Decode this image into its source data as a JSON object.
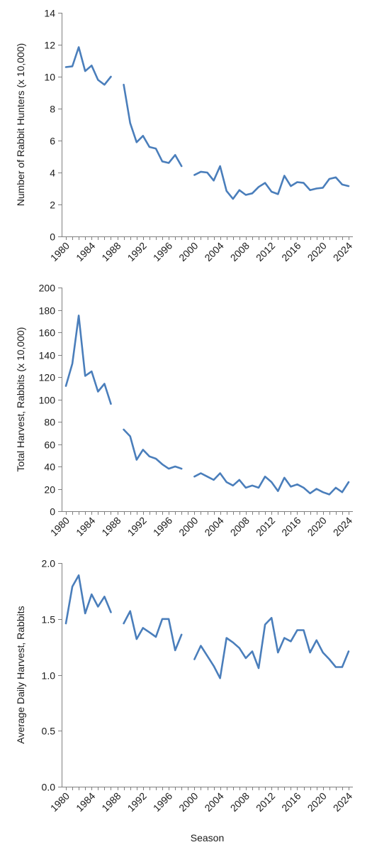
{
  "colors": {
    "series": "#4a7ebb",
    "axis": "#7f7f7f",
    "text": "#1a1a1a"
  },
  "chart_data": [
    {
      "type": "line",
      "title": "",
      "xlabel": "",
      "ylabel": "Number of Rabbit Hunters (x 10,000)",
      "xlim": [
        1980,
        2024
      ],
      "ylim": [
        0,
        14
      ],
      "yticks": [
        0,
        2,
        4,
        6,
        8,
        10,
        12,
        14
      ],
      "ytick_labels": [
        "0",
        "2",
        "4",
        "6",
        "8",
        "10",
        "12",
        "14"
      ],
      "xticks": [
        1980,
        1984,
        1988,
        1992,
        1996,
        2000,
        2004,
        2008,
        2012,
        2016,
        2020,
        2024
      ],
      "xtick_labels": [
        "1980",
        "1984",
        "1988",
        "1992",
        "1996",
        "2000",
        "2004",
        "2008",
        "2012",
        "2016",
        "2020",
        "2024"
      ],
      "grid": false,
      "segments": [
        {
          "x": [
            1980,
            1981,
            1982,
            1983,
            1984,
            1985,
            1986,
            1987
          ],
          "y": [
            10.6,
            10.65,
            11.85,
            10.35,
            10.7,
            9.8,
            9.5,
            10.0
          ]
        },
        {
          "x": [
            1989,
            1990,
            1991,
            1992,
            1993,
            1994,
            1995,
            1996,
            1997,
            1998
          ],
          "y": [
            9.5,
            7.1,
            5.9,
            6.3,
            5.6,
            5.5,
            4.7,
            4.6,
            5.1,
            4.4
          ]
        },
        {
          "x": [
            2000,
            2001,
            2002,
            2003,
            2004,
            2005,
            2006,
            2007,
            2008,
            2009,
            2010,
            2011,
            2012,
            2013,
            2014,
            2015,
            2016,
            2017,
            2018,
            2019,
            2020,
            2021,
            2022,
            2023,
            2024
          ],
          "y": [
            3.85,
            4.05,
            4.0,
            3.5,
            4.4,
            2.85,
            2.35,
            2.9,
            2.6,
            2.7,
            3.1,
            3.35,
            2.8,
            2.65,
            3.8,
            3.15,
            3.4,
            3.35,
            2.9,
            3.0,
            3.05,
            3.6,
            3.7,
            3.25,
            3.15
          ]
        }
      ]
    },
    {
      "type": "line",
      "title": "",
      "xlabel": "",
      "ylabel": "Total Harvest, Rabbits (x 10,000)",
      "xlim": [
        1980,
        2024
      ],
      "ylim": [
        0,
        200
      ],
      "yticks": [
        0,
        20,
        40,
        60,
        80,
        100,
        120,
        140,
        160,
        180,
        200
      ],
      "ytick_labels": [
        "0",
        "20",
        "40",
        "60",
        "80",
        "100",
        "120",
        "140",
        "160",
        "180",
        "200"
      ],
      "xticks": [
        1980,
        1984,
        1988,
        1992,
        1996,
        2000,
        2004,
        2008,
        2012,
        2016,
        2020,
        2024
      ],
      "xtick_labels": [
        "1980",
        "1984",
        "1988",
        "1992",
        "1996",
        "2000",
        "2004",
        "2008",
        "2012",
        "2016",
        "2020",
        "2024"
      ],
      "grid": false,
      "segments": [
        {
          "x": [
            1980,
            1981,
            1982,
            1983,
            1984,
            1985,
            1986,
            1987
          ],
          "y": [
            112,
            132,
            175,
            121,
            125,
            107,
            114,
            96
          ]
        },
        {
          "x": [
            1989,
            1990,
            1991,
            1992,
            1993,
            1994,
            1995,
            1996,
            1997,
            1998
          ],
          "y": [
            73,
            67,
            46,
            55,
            49,
            47,
            42,
            38,
            40,
            38
          ]
        },
        {
          "x": [
            2000,
            2001,
            2002,
            2003,
            2004,
            2005,
            2006,
            2007,
            2008,
            2009,
            2010,
            2011,
            2012,
            2013,
            2014,
            2015,
            2016,
            2017,
            2018,
            2019,
            2020,
            2021,
            2022,
            2023,
            2024
          ],
          "y": [
            31,
            34,
            31,
            28,
            34,
            26,
            23,
            28,
            21,
            23,
            21,
            31,
            26,
            18,
            30,
            22,
            24,
            21,
            16,
            20,
            17,
            15,
            21,
            17,
            26
          ]
        }
      ]
    },
    {
      "type": "line",
      "title": "",
      "xlabel": "Season",
      "ylabel": "Average Daily Harvest, Rabbits",
      "xlim": [
        1980,
        2024
      ],
      "ylim": [
        0,
        2
      ],
      "yticks": [
        0,
        0.5,
        1,
        1.5,
        2
      ],
      "ytick_labels": [
        "0.0",
        "0.5",
        "1.0",
        "1.5",
        "2.0"
      ],
      "xticks": [
        1980,
        1984,
        1988,
        1992,
        1996,
        2000,
        2004,
        2008,
        2012,
        2016,
        2020,
        2024
      ],
      "xtick_labels": [
        "1980",
        "1984",
        "1988",
        "1992",
        "1996",
        "2000",
        "2004",
        "2008",
        "2012",
        "2016",
        "2020",
        "2024"
      ],
      "grid": false,
      "segments": [
        {
          "x": [
            1980,
            1981,
            1982,
            1983,
            1984,
            1985,
            1986,
            1987
          ],
          "y": [
            1.46,
            1.79,
            1.89,
            1.55,
            1.72,
            1.61,
            1.7,
            1.56
          ]
        },
        {
          "x": [
            1989,
            1990,
            1991,
            1992,
            1993,
            1994,
            1995,
            1996,
            1997,
            1998
          ],
          "y": [
            1.46,
            1.57,
            1.32,
            1.42,
            1.38,
            1.34,
            1.5,
            1.5,
            1.22,
            1.36
          ]
        },
        {
          "x": [
            2000,
            2001,
            2002,
            2003,
            2004,
            2005,
            2006,
            2007,
            2008,
            2009,
            2010,
            2011,
            2012,
            2013,
            2014,
            2015,
            2016,
            2017,
            2018,
            2019,
            2020,
            2021,
            2022,
            2023,
            2024
          ],
          "y": [
            1.14,
            1.26,
            1.17,
            1.08,
            0.97,
            1.33,
            1.29,
            1.24,
            1.15,
            1.21,
            1.06,
            1.45,
            1.51,
            1.2,
            1.33,
            1.3,
            1.4,
            1.4,
            1.2,
            1.31,
            1.2,
            1.14,
            1.07,
            1.07,
            1.21
          ]
        }
      ]
    }
  ]
}
